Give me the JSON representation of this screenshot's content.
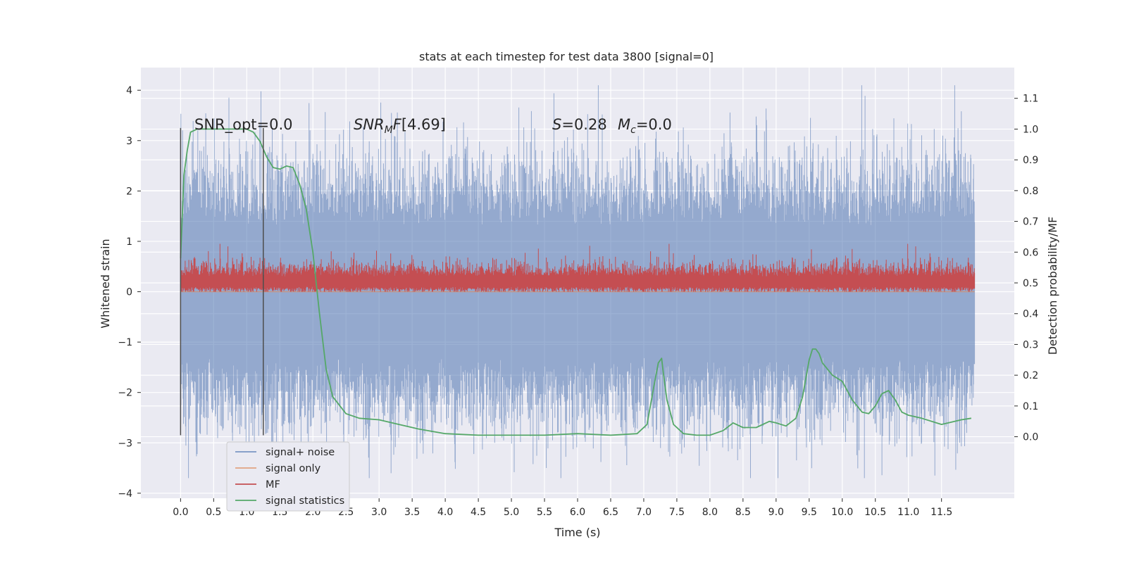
{
  "chart_data": {
    "type": "line",
    "title": "stats at each timestep for test data 3800 [signal=0]",
    "xlabel": "Time (s)",
    "ylabel": "Whitened strain",
    "y2label": "Detection probability/MF",
    "xlim": [
      -0.6,
      12.6
    ],
    "ylim": [
      -4.1,
      4.45
    ],
    "y2lim": [
      -0.2,
      1.2
    ],
    "xticks": [
      "0.0",
      "0.5",
      "1.0",
      "1.5",
      "2.0",
      "2.5",
      "3.0",
      "3.5",
      "4.0",
      "4.5",
      "5.0",
      "5.5",
      "6.0",
      "6.5",
      "7.0",
      "7.5",
      "8.0",
      "8.5",
      "9.0",
      "9.5",
      "10.0",
      "10.5",
      "11.0",
      "11.5"
    ],
    "yticks": [
      "4",
      "3",
      "2",
      "1",
      "0",
      "−1",
      "−2",
      "−3",
      "−4"
    ],
    "y2ticks": [
      "1.1",
      "1.0",
      "0.9",
      "0.8",
      "0.7",
      "0.6",
      "0.5",
      "0.4",
      "0.3",
      "0.2",
      "0.1",
      "0.0"
    ],
    "grid": true,
    "legend_position": "lower-left",
    "annotations": {
      "snr_opt": "SNR_opt=0.0",
      "snr_mf": "[4.69]",
      "s_value": "=0.28",
      "mc_value": "=0.0"
    },
    "vertical_lines": [
      0.0,
      1.25
    ],
    "series": [
      {
        "name": "signal+ noise",
        "color": "#4c72b0",
        "kind": "noise",
        "x_range": [
          0.0,
          12.0
        ],
        "y_range_approx": [
          -3.7,
          4.1
        ],
        "peak_max": {
          "x": 11.7,
          "y": 4.1
        },
        "trough_min": {
          "x": 11.4,
          "y": -3.65
        }
      },
      {
        "name": "signal only",
        "color": "#dd8452",
        "kind": "flat",
        "x_range": [
          0.0,
          12.0
        ],
        "values": [
          0.0
        ]
      },
      {
        "name": "MF",
        "color": "#c44e52",
        "kind": "noise",
        "x_range": [
          0.0,
          12.0
        ],
        "y_range_approx": [
          0.0,
          0.95
        ]
      },
      {
        "name": "signal statistics",
        "color": "#55a868",
        "kind": "line",
        "axis": "right",
        "x": [
          0.0,
          0.05,
          0.1,
          0.15,
          0.25,
          0.4,
          0.6,
          0.8,
          1.0,
          1.1,
          1.2,
          1.3,
          1.4,
          1.5,
          1.6,
          1.7,
          1.8,
          1.9,
          2.0,
          2.1,
          2.2,
          2.3,
          2.5,
          2.7,
          3.0,
          3.3,
          3.6,
          4.0,
          4.5,
          5.0,
          5.5,
          6.0,
          6.5,
          6.9,
          7.05,
          7.15,
          7.22,
          7.27,
          7.3,
          7.35,
          7.45,
          7.6,
          7.8,
          8.0,
          8.2,
          8.35,
          8.5,
          8.7,
          8.9,
          9.0,
          9.15,
          9.3,
          9.4,
          9.5,
          9.55,
          9.6,
          9.65,
          9.7,
          9.85,
          10.0,
          10.15,
          10.3,
          10.4,
          10.5,
          10.6,
          10.7,
          10.8,
          10.9,
          11.0,
          11.2,
          11.5,
          11.8,
          11.95
        ],
        "y": [
          0.58,
          0.85,
          0.93,
          0.99,
          1.0,
          1.0,
          1.0,
          1.0,
          1.0,
          0.99,
          0.96,
          0.91,
          0.875,
          0.87,
          0.88,
          0.875,
          0.82,
          0.74,
          0.6,
          0.4,
          0.22,
          0.13,
          0.075,
          0.06,
          0.055,
          0.04,
          0.025,
          0.01,
          0.005,
          0.005,
          0.005,
          0.01,
          0.005,
          0.01,
          0.04,
          0.16,
          0.24,
          0.255,
          0.2,
          0.12,
          0.04,
          0.01,
          0.005,
          0.005,
          0.02,
          0.045,
          0.03,
          0.03,
          0.05,
          0.045,
          0.035,
          0.06,
          0.13,
          0.25,
          0.285,
          0.285,
          0.27,
          0.24,
          0.2,
          0.18,
          0.12,
          0.08,
          0.075,
          0.1,
          0.14,
          0.15,
          0.12,
          0.08,
          0.07,
          0.06,
          0.04,
          0.055,
          0.06
        ]
      }
    ]
  }
}
